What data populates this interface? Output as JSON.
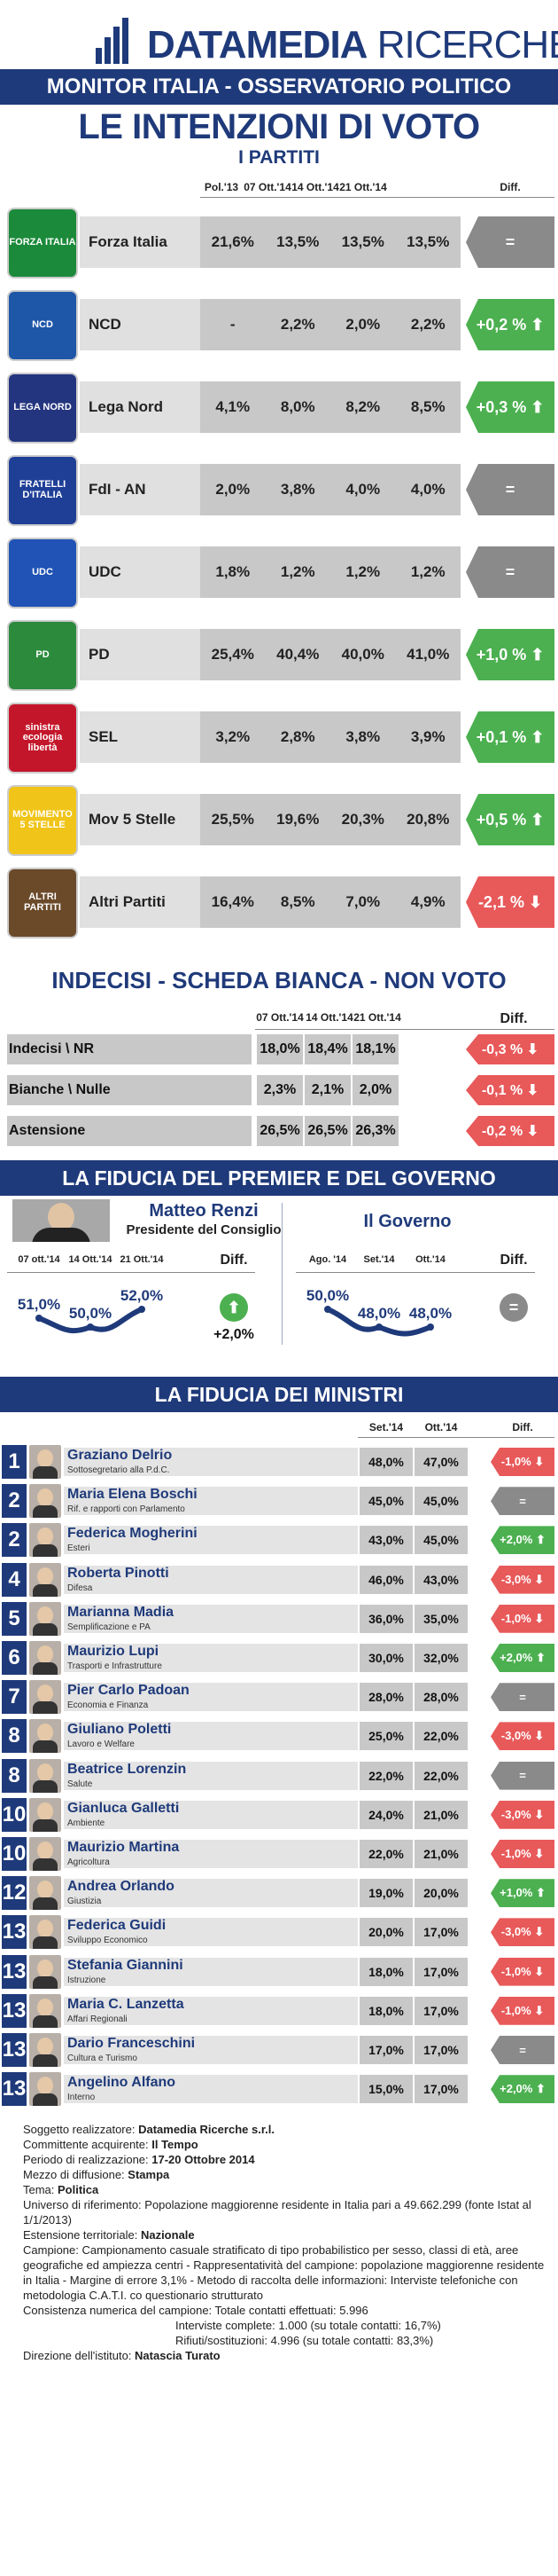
{
  "header": {
    "brand_bold": "DATAMEDIA",
    "brand_light": "RICERCHE",
    "monitor": "MONITOR ITALIA - OSSERVATORIO POLITICO",
    "title": "LE INTENZIONI DI VOTO",
    "subtitle": "I PARTITI"
  },
  "chart_data": [
    {
      "type": "table",
      "title": "LE INTENZIONI DI VOTO - I PARTITI",
      "columns": [
        "Pol.'13",
        "07 Ott.'14",
        "14 Ott.'14",
        "21 Ott.'14",
        "Diff."
      ],
      "rows": [
        {
          "name": "Forza Italia",
          "logo": "forza-italia-logo",
          "values": [
            "21,6%",
            "13,5%",
            "13,5%",
            "13,5%"
          ],
          "diff": "=",
          "trend": "none"
        },
        {
          "name": "NCD",
          "logo": "ncd-logo",
          "values": [
            "-",
            "2,2%",
            "2,0%",
            "2,2%"
          ],
          "diff": "+0,2 %",
          "trend": "up"
        },
        {
          "name": "Lega Nord",
          "logo": "lega-nord-logo",
          "values": [
            "4,1%",
            "8,0%",
            "8,2%",
            "8,5%"
          ],
          "diff": "+0,3 %",
          "trend": "up"
        },
        {
          "name": "FdI - AN",
          "logo": "fdi-logo",
          "values": [
            "2,0%",
            "3,8%",
            "4,0%",
            "4,0%"
          ],
          "diff": "=",
          "trend": "none"
        },
        {
          "name": "UDC",
          "logo": "udc-logo",
          "values": [
            "1,8%",
            "1,2%",
            "1,2%",
            "1,2%"
          ],
          "diff": "=",
          "trend": "none"
        },
        {
          "name": "PD",
          "logo": "pd-logo",
          "values": [
            "25,4%",
            "40,4%",
            "40,0%",
            "41,0%"
          ],
          "diff": "+1,0 %",
          "trend": "up"
        },
        {
          "name": "SEL",
          "logo": "sel-logo",
          "values": [
            "3,2%",
            "2,8%",
            "3,8%",
            "3,9%"
          ],
          "diff": "+0,1 %",
          "trend": "up"
        },
        {
          "name": "Mov 5 Stelle",
          "logo": "m5s-logo",
          "values": [
            "25,5%",
            "19,6%",
            "20,3%",
            "20,8%"
          ],
          "diff": "+0,5 %",
          "trend": "up"
        },
        {
          "name": "Altri Partiti",
          "logo": "altri-partiti-logo",
          "values": [
            "16,4%",
            "8,5%",
            "7,0%",
            "4,9%"
          ],
          "diff": "-2,1 %",
          "trend": "down"
        }
      ]
    },
    {
      "type": "table",
      "title": "INDECISI - SCHEDA BIANCA - NON VOTO",
      "columns": [
        "07 Ott.'14",
        "14 Ott.'14",
        "21 Ott.'14",
        "Diff."
      ],
      "rows": [
        {
          "name": "Indecisi \\ NR",
          "values": [
            "18,0%",
            "18,4%",
            "18,1%"
          ],
          "diff": "-0,3 %",
          "trend": "down"
        },
        {
          "name": "Bianche \\ Nulle",
          "values": [
            "2,3%",
            "2,1%",
            "2,0%"
          ],
          "diff": "-0,1 %",
          "trend": "down"
        },
        {
          "name": "Astensione",
          "values": [
            "26,5%",
            "26,5%",
            "26,3%"
          ],
          "diff": "-0,2 %",
          "trend": "down"
        }
      ]
    },
    {
      "type": "line",
      "title": "LA FIDUCIA DEL PREMIER E DEL GOVERNO",
      "premier": {
        "name": "Matteo Renzi",
        "role": "Presidente del Consiglio",
        "x": [
          "07 ott.'14",
          "14 Ott.'14",
          "21 Ott.'14"
        ],
        "values": [
          51.0,
          50.0,
          52.0
        ],
        "labels": [
          "51,0%",
          "50,0%",
          "52,0%"
        ],
        "diff_header": "Diff.",
        "diff": "+2,0%",
        "trend": "up"
      },
      "governo": {
        "name": "Il Governo",
        "x": [
          "Ago. '14",
          "Set.'14",
          "Ott.'14"
        ],
        "values": [
          50.0,
          48.0,
          48.0
        ],
        "labels": [
          "50,0%",
          "48,0%",
          "48,0%"
        ],
        "diff_header": "Diff.",
        "diff": "=",
        "trend": "none"
      }
    },
    {
      "type": "table",
      "title": "LA FIDUCIA DEI MINISTRI",
      "columns": [
        "Set.'14",
        "Ott.'14",
        "Diff."
      ],
      "rows": [
        {
          "rank": "1",
          "name": "Graziano Delrio",
          "role": "Sottosegretario alla P.d.C.",
          "values": [
            "48,0%",
            "47,0%"
          ],
          "diff": "-1,0%",
          "trend": "down"
        },
        {
          "rank": "2",
          "name": "Maria Elena Boschi",
          "role": "Rif. e rapporti con Parlamento",
          "values": [
            "45,0%",
            "45,0%"
          ],
          "diff": "=",
          "trend": "none"
        },
        {
          "rank": "2",
          "name": "Federica Mogherini",
          "role": "Esteri",
          "values": [
            "43,0%",
            "45,0%"
          ],
          "diff": "+2,0%",
          "trend": "up"
        },
        {
          "rank": "4",
          "name": "Roberta Pinotti",
          "role": "Difesa",
          "values": [
            "46,0%",
            "43,0%"
          ],
          "diff": "-3,0%",
          "trend": "down"
        },
        {
          "rank": "5",
          "name": "Marianna Madia",
          "role": "Semplificazione e PA",
          "values": [
            "36,0%",
            "35,0%"
          ],
          "diff": "-1,0%",
          "trend": "down"
        },
        {
          "rank": "6",
          "name": "Maurizio Lupi",
          "role": "Trasporti e Infrastrutture",
          "values": [
            "30,0%",
            "32,0%"
          ],
          "diff": "+2,0%",
          "trend": "up"
        },
        {
          "rank": "7",
          "name": "Pier Carlo Padoan",
          "role": "Economia e Finanza",
          "values": [
            "28,0%",
            "28,0%"
          ],
          "diff": "=",
          "trend": "none"
        },
        {
          "rank": "8",
          "name": "Giuliano Poletti",
          "role": "Lavoro e Welfare",
          "values": [
            "25,0%",
            "22,0%"
          ],
          "diff": "-3,0%",
          "trend": "down"
        },
        {
          "rank": "8",
          "name": "Beatrice Lorenzin",
          "role": "Salute",
          "values": [
            "22,0%",
            "22,0%"
          ],
          "diff": "=",
          "trend": "none"
        },
        {
          "rank": "10",
          "name": "Gianluca Galletti",
          "role": "Ambiente",
          "values": [
            "24,0%",
            "21,0%"
          ],
          "diff": "-3,0%",
          "trend": "down"
        },
        {
          "rank": "10",
          "name": "Maurizio Martina",
          "role": "Agricoltura",
          "values": [
            "22,0%",
            "21,0%"
          ],
          "diff": "-1,0%",
          "trend": "down"
        },
        {
          "rank": "12",
          "name": "Andrea Orlando",
          "role": "Giustizia",
          "values": [
            "19,0%",
            "20,0%"
          ],
          "diff": "+1,0%",
          "trend": "up"
        },
        {
          "rank": "13",
          "name": "Federica Guidi",
          "role": "Sviluppo Economico",
          "values": [
            "20,0%",
            "17,0%"
          ],
          "diff": "-3,0%",
          "trend": "down"
        },
        {
          "rank": "13",
          "name": "Stefania Giannini",
          "role": "Istruzione",
          "values": [
            "18,0%",
            "17,0%"
          ],
          "diff": "-1,0%",
          "trend": "down"
        },
        {
          "rank": "13",
          "name": "Maria C. Lanzetta",
          "role": "Affari Regionali",
          "values": [
            "18,0%",
            "17,0%"
          ],
          "diff": "-1,0%",
          "trend": "down"
        },
        {
          "rank": "13",
          "name": "Dario Franceschini",
          "role": "Cultura e Turismo",
          "values": [
            "17,0%",
            "17,0%"
          ],
          "diff": "=",
          "trend": "none"
        },
        {
          "rank": "13",
          "name": "Angelino Alfano",
          "role": "Interno",
          "values": [
            "15,0%",
            "17,0%"
          ],
          "diff": "+2,0%",
          "trend": "up"
        }
      ]
    }
  ],
  "footer": [
    {
      "k": "Soggetto realizzatore: ",
      "v": "Datamedia Ricerche s.r.l."
    },
    {
      "k": "Committente acquirente: ",
      "v": "Il Tempo"
    },
    {
      "k": "Periodo di realizzazione: ",
      "v": "17-20 Ottobre 2014"
    },
    {
      "k": "Mezzo di diffusione: ",
      "v": "Stampa"
    },
    {
      "k": "Tema: ",
      "v": "Politica"
    },
    {
      "k": "Universo di riferimento: Popolazione maggiorenne residente in Italia pari a 49.662.299 (fonte Istat al 1/1/2013)",
      "v": ""
    },
    {
      "k": "Estensione territoriale: ",
      "v": "Nazionale"
    },
    {
      "k": "Campione: Campionamento casuale stratificato di tipo probabilistico per sesso, classi di età, aree geografiche ed ampiezza centri - Rappresentatività del campione: popolazione maggiorenne residente in Italia - Margine di errore 3,1% - Metodo di raccolta delle informazioni: Interviste telefoniche con metodologia C.A.T.I. co questionario strutturato",
      "v": ""
    },
    {
      "k": "Consistenza numerica del campione: Totale contatti effettuati: 5.996",
      "v": ""
    },
    {
      "k": "Interviste complete: 1.000 (su totale contatti: 16,7%)",
      "v": "",
      "indent": true
    },
    {
      "k": "Rifiuti/sostituzioni: 4.996 (su totale contatti: 83,3%)",
      "v": "",
      "indent": true
    },
    {
      "k": "Direzione dell'istituto: ",
      "v": "Natascia Turato"
    }
  ],
  "colors": {
    "navy": "#1f3a7a",
    "green": "#4cb050",
    "red": "#e8595a",
    "grey": "#8a8a8a"
  }
}
